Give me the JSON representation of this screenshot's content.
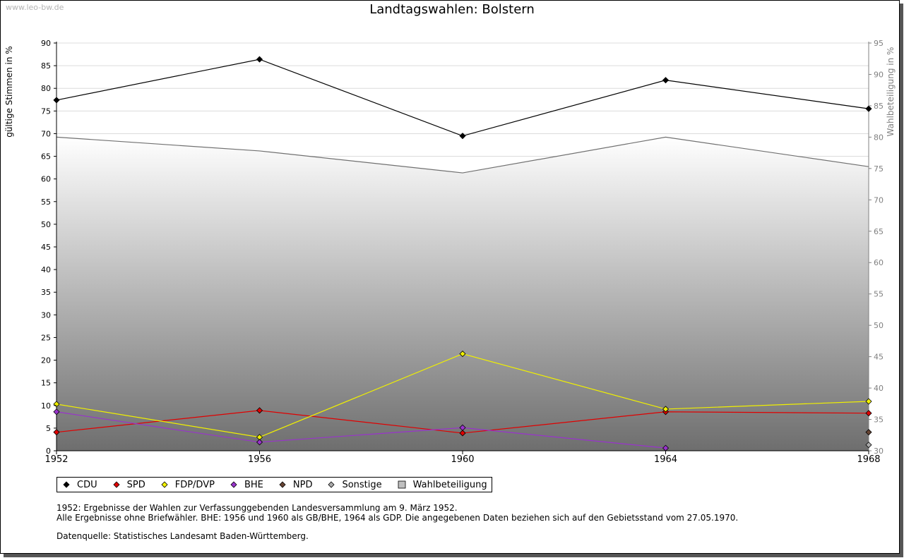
{
  "page": {
    "watermark": "www.leo-bw.de",
    "notes": [
      "1952: Ergebnisse der Wahlen zur Verfassunggebenden Landesversammlung am 9. März 1952.",
      "Alle Ergebnisse ohne Briefwähler. BHE: 1956 und 1960 als GB/BHE, 1964 als GDP. Die angegebenen Daten beziehen sich auf den Gebietsstand vom 27.05.1970.",
      "Datenquelle: Statistisches Landesamt Baden-Württemberg."
    ]
  },
  "chart_data": {
    "type": "line",
    "title": "Landtagswahlen: Bolstern",
    "ylabel": "gültige Stimmen in %",
    "y2label": "Wahlbeteiligung in %",
    "x": [
      "1952",
      "1956",
      "1960",
      "1964",
      "1968"
    ],
    "ylim": [
      0,
      90
    ],
    "yticks": [
      0,
      5,
      10,
      15,
      20,
      25,
      30,
      35,
      40,
      45,
      50,
      55,
      60,
      65,
      70,
      75,
      80,
      85,
      90
    ],
    "y2lim": [
      30,
      95
    ],
    "y2ticks": [
      30,
      35,
      40,
      45,
      50,
      55,
      60,
      65,
      70,
      75,
      80,
      85,
      90,
      95
    ],
    "grid": true,
    "legend_position": "bottom",
    "series": [
      {
        "name": "CDU",
        "color": "#000000",
        "values": [
          77.4,
          86.4,
          69.5,
          81.8,
          75.5
        ]
      },
      {
        "name": "SPD",
        "color": "#e00000",
        "values": [
          4.1,
          8.9,
          3.9,
          8.6,
          8.3
        ]
      },
      {
        "name": "FDP/DVP",
        "color": "#f0f000",
        "values": [
          10.3,
          3.0,
          21.4,
          9.2,
          10.9
        ]
      },
      {
        "name": "BHE",
        "color": "#9933cc",
        "values": [
          8.6,
          1.9,
          5.1,
          0.6,
          null
        ]
      },
      {
        "name": "NPD",
        "color": "#664433",
        "values": [
          null,
          null,
          null,
          null,
          4.1
        ]
      },
      {
        "name": "Sonstige",
        "color": "#aaaaaa",
        "values": [
          null,
          null,
          null,
          null,
          1.3
        ]
      }
    ],
    "turnout": {
      "name": "Wahlbeteiligung",
      "axis": "right",
      "type": "area",
      "values": [
        80.0,
        77.8,
        74.3,
        80.0,
        75.3
      ]
    }
  }
}
